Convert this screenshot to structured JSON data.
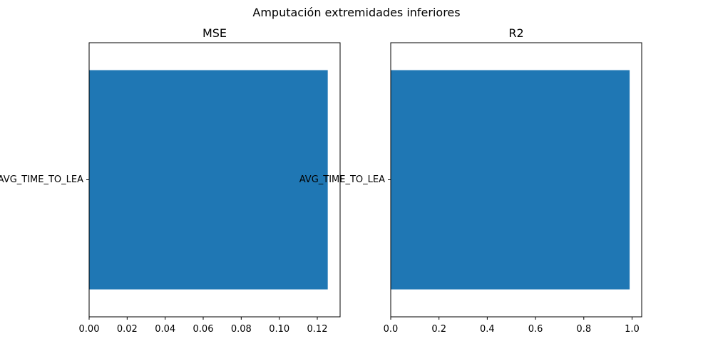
{
  "figure": {
    "suptitle": "Amputación extremidades inferiores"
  },
  "chart_data": [
    {
      "type": "bar",
      "orientation": "horizontal",
      "title": "MSE",
      "categories": [
        "AVG_TIME_TO_LEA"
      ],
      "values": [
        0.1255
      ],
      "xlabel": "",
      "ylabel": "",
      "xlim": [
        0,
        0.132
      ],
      "xticks": [
        0.0,
        0.02,
        0.04,
        0.06,
        0.08,
        0.1,
        0.12
      ],
      "xtick_labels": [
        "0.00",
        "0.02",
        "0.04",
        "0.06",
        "0.08",
        "0.10",
        "0.12"
      ],
      "grid": false,
      "bar_color": "#1f77b4"
    },
    {
      "type": "bar",
      "orientation": "horizontal",
      "title": "R2",
      "categories": [
        "AVG_TIME_TO_LEA"
      ],
      "values": [
        0.99
      ],
      "xlabel": "",
      "ylabel": "",
      "xlim": [
        0,
        1.04
      ],
      "xticks": [
        0.0,
        0.2,
        0.4,
        0.6,
        0.8,
        1.0
      ],
      "xtick_labels": [
        "0.0",
        "0.2",
        "0.4",
        "0.6",
        "0.8",
        "1.0"
      ],
      "grid": false,
      "bar_color": "#1f77b4"
    }
  ]
}
